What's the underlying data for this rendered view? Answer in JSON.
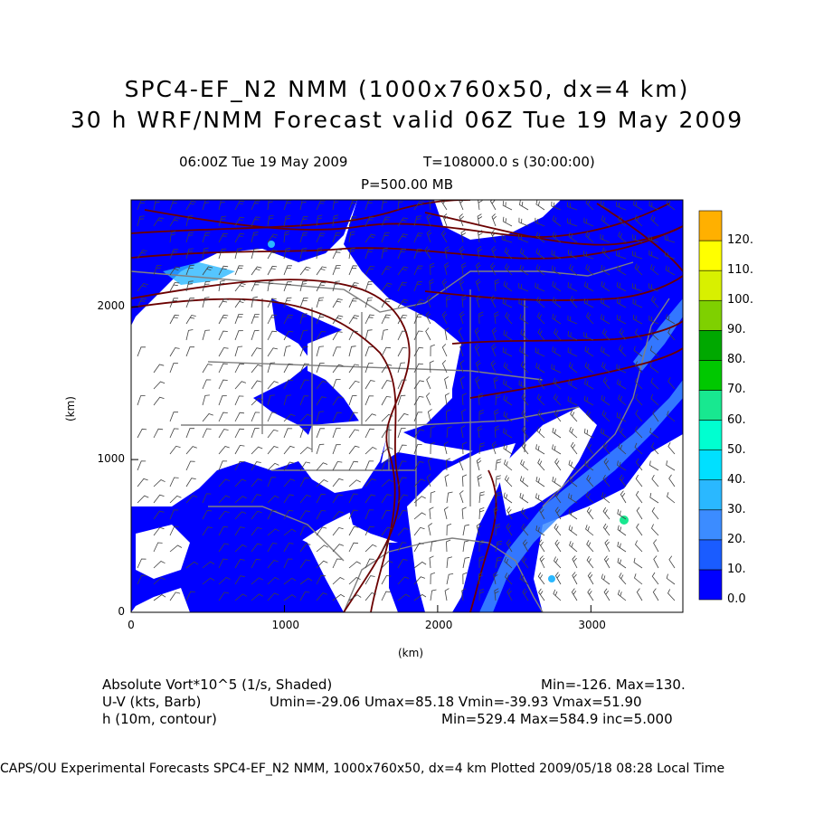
{
  "title_line1": "SPC4-EF_N2 NMM (1000x760x50, dx=4 km)",
  "title_line2": "30 h WRF/NMM Forecast valid 06Z Tue 19 May 2009",
  "valid_time": "06:00Z Tue 19 May 2009",
  "model_time": "T=108000.0 s (30:00:00)",
  "pressure_level": "P=500.00 MB",
  "axes": {
    "x_label": "(km)",
    "y_label": "(km)",
    "x_ticks": [
      "0",
      "1000",
      "2000",
      "3000"
    ],
    "y_ticks": [
      "0",
      "1000",
      "2000"
    ],
    "x_tick_values": [
      0,
      1000,
      2000,
      3000
    ],
    "y_tick_values": [
      0,
      1000,
      2000
    ],
    "x_range_km": [
      0,
      3600
    ],
    "y_range_km": [
      0,
      2700
    ]
  },
  "colorbar": {
    "labels": [
      "0.0",
      "10.",
      "20.",
      "30.",
      "40.",
      "50.",
      "60.",
      "70.",
      "80.",
      "90.",
      "100.",
      "110.",
      "120."
    ],
    "colors": [
      "#0000ff",
      "#1a5cff",
      "#3c8cff",
      "#2ab8ff",
      "#00e0ff",
      "#00ffd0",
      "#18e890",
      "#00c800",
      "#00a800",
      "#7fd000",
      "#d8f000",
      "#ffff00",
      "#ffb000"
    ]
  },
  "legend": {
    "vort_label": "Absolute Vort*10^5 (1/s, Shaded)",
    "vort_stats": "Min=-126. Max=130.",
    "wind_label": "U-V (kts, Barb)",
    "wind_stats": "Umin=-29.06 Umax=85.18 Vmin=-39.93 Vmax=51.90",
    "height_label": "h (10m, contour)",
    "height_stats": "Min=529.4 Max=584.9 inc=5.000"
  },
  "footer": "CAPS/OU Experimental Forecasts  SPC4-EF_N2 NMM, 1000x760x50, dx=4 km  Plotted 2009/05/18 08:28 Local Time",
  "colors": {
    "shade_low": "#0000ff",
    "shade_mid": "#3c8cff",
    "shade_light": "#2ab8ff",
    "contour": "#6b0000",
    "state_lines": "#808080",
    "barb": "#404040"
  }
}
